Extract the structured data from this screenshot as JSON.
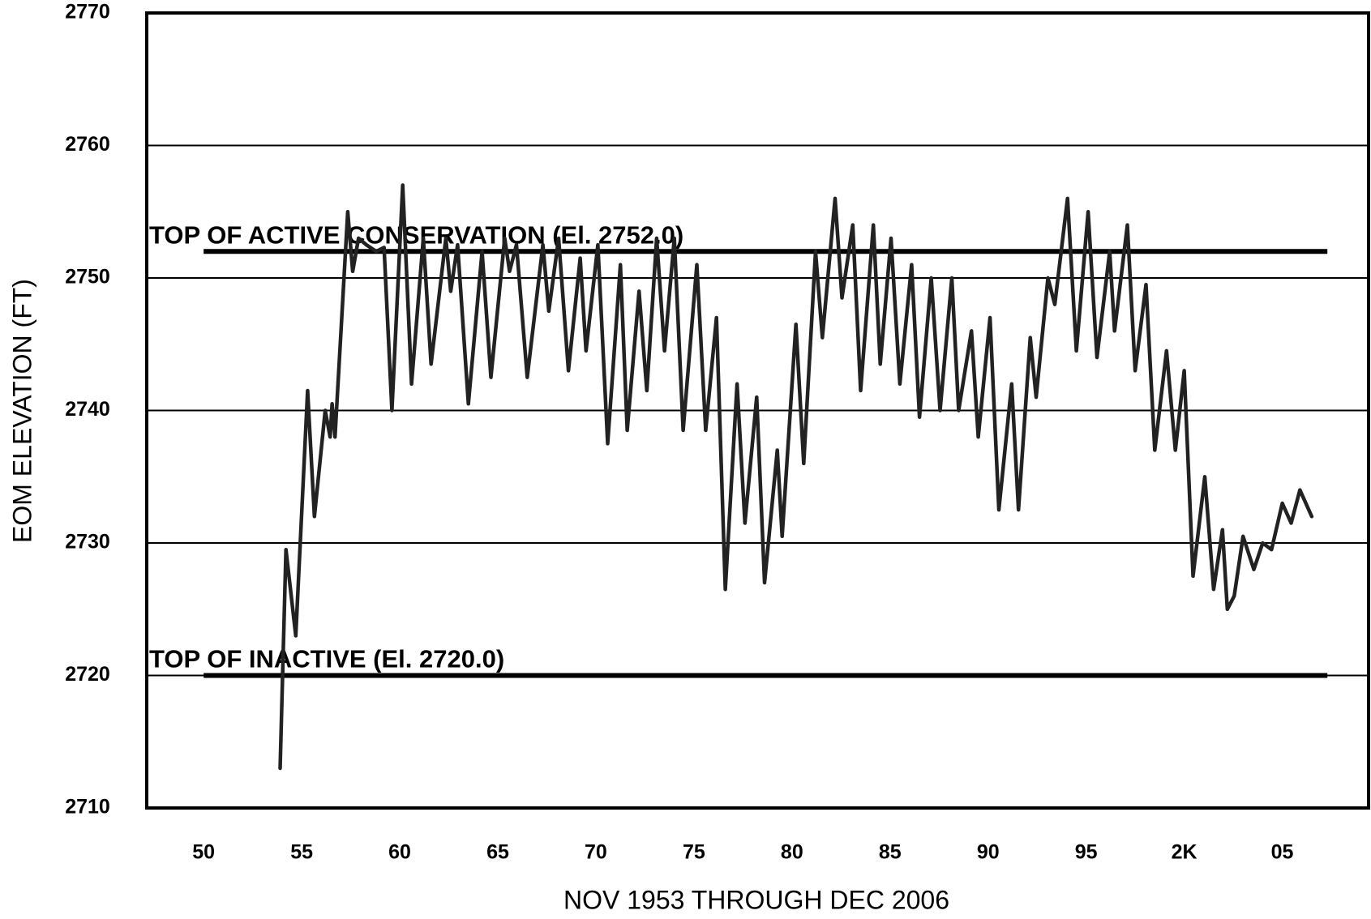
{
  "chart_data": {
    "type": "line",
    "y_label": "EOM ELEVATION (FT)",
    "x_label": "NOV 1953 THROUGH DEC 2006",
    "xlim": [
      1947.1,
      2009.4
    ],
    "xticks": [
      {
        "value": 1950,
        "label": "50"
      },
      {
        "value": 1955,
        "label": "55"
      },
      {
        "value": 1960,
        "label": "60"
      },
      {
        "value": 1965,
        "label": "65"
      },
      {
        "value": 1970,
        "label": "70"
      },
      {
        "value": 1975,
        "label": "75"
      },
      {
        "value": 1980,
        "label": "80"
      },
      {
        "value": 1985,
        "label": "85"
      },
      {
        "value": 1990,
        "label": "90"
      },
      {
        "value": 1995,
        "label": "95"
      },
      {
        "value": 2000,
        "label": "2K"
      },
      {
        "value": 2005,
        "label": "05"
      }
    ],
    "ylim": [
      2710,
      2770
    ],
    "yticks": [
      2710,
      2720,
      2730,
      2740,
      2750,
      2760,
      2770
    ],
    "grid": true,
    "reference_lines": [
      {
        "label": "TOP OF ACTIVE CONSERVATION (El. 2752.0)",
        "value": 2752,
        "x": [
          1950,
          2007.3
        ]
      },
      {
        "label": "TOP OF INACTIVE (El. 2720.0)",
        "value": 2720,
        "x": [
          1950,
          2007.3
        ]
      }
    ],
    "series": [
      {
        "color": "#222222",
        "x": [
          1953.9,
          1954.2,
          1954.7,
          1955.3,
          1955.65,
          1956.2,
          1956.45,
          1956.55,
          1956.7,
          1957.35,
          1957.6,
          1957.9,
          1958.3,
          1958.8,
          1959.2,
          1959.6,
          1960.15,
          1960.6,
          1961.2,
          1961.6,
          1962.35,
          1962.6,
          1962.95,
          1963.5,
          1964.2,
          1964.65,
          1965.35,
          1965.6,
          1965.95,
          1966.5,
          1967.3,
          1967.6,
          1968.1,
          1968.6,
          1969.2,
          1969.5,
          1970.1,
          1970.6,
          1971.25,
          1971.6,
          1972.2,
          1972.6,
          1973.1,
          1973.5,
          1974.0,
          1974.45,
          1975.15,
          1975.6,
          1976.15,
          1976.6,
          1977.2,
          1977.6,
          1978.2,
          1978.6,
          1979.25,
          1979.5,
          1980.2,
          1980.6,
          1981.2,
          1981.55,
          1982.2,
          1982.55,
          1983.1,
          1983.5,
          1984.15,
          1984.5,
          1985.05,
          1985.5,
          1986.1,
          1986.5,
          1987.1,
          1987.55,
          1988.15,
          1988.5,
          1989.15,
          1989.5,
          1990.1,
          1990.55,
          1991.2,
          1991.55,
          1992.15,
          1992.45,
          1993.05,
          1993.4,
          1994.05,
          1994.5,
          1995.1,
          1995.55,
          1996.2,
          1996.45,
          1997.1,
          1997.5,
          1998.05,
          1998.5,
          1999.1,
          1999.55,
          2000.0,
          2000.45,
          2001.05,
          2001.5,
          2001.95,
          2002.2,
          2002.55,
          2003.0,
          2003.55,
          2004.0,
          2004.45,
          2005.0,
          2005.45,
          2005.9,
          2006.5
        ],
        "values": [
          2713,
          2729.5,
          2723,
          2741.5,
          2732,
          2740,
          2738,
          2740.5,
          2738,
          2755,
          2750.5,
          2753,
          2752.5,
          2752,
          2752.3,
          2740,
          2757,
          2742,
          2753,
          2743.5,
          2753,
          2749,
          2752.5,
          2740.5,
          2752,
          2742.5,
          2753,
          2750.5,
          2752.5,
          2742.5,
          2752.5,
          2747.5,
          2753,
          2743,
          2751.5,
          2744.5,
          2752.5,
          2737.5,
          2751,
          2738.5,
          2749,
          2741.5,
          2753,
          2744.5,
          2753,
          2738.5,
          2751,
          2738.5,
          2747,
          2726.5,
          2742,
          2731.5,
          2741,
          2727,
          2737,
          2730.5,
          2746.5,
          2736,
          2752,
          2745.5,
          2756,
          2748.5,
          2754,
          2741.5,
          2754,
          2743.5,
          2753,
          2742,
          2751,
          2739.5,
          2750,
          2740,
          2750,
          2740,
          2746,
          2738,
          2747,
          2732.5,
          2742,
          2732.5,
          2745.5,
          2741,
          2750,
          2748,
          2756,
          2744.5,
          2755,
          2744,
          2752,
          2746,
          2754,
          2743,
          2749.5,
          2737,
          2744.5,
          2737,
          2743,
          2727.5,
          2735,
          2726.5,
          2731,
          2725,
          2726,
          2730.5,
          2728,
          2730,
          2729.5,
          2733,
          2731.5,
          2734,
          2732
        ]
      }
    ]
  }
}
